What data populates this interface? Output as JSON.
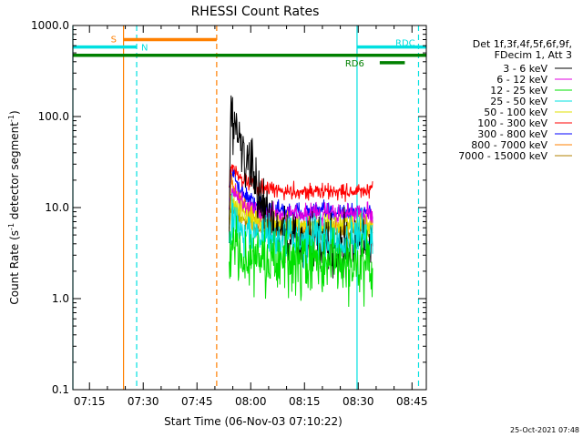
{
  "chart_data": {
    "type": "line",
    "title": "RHESSI Count Rates",
    "xlabel": "Start Time (06-Nov-03 07:10:22)",
    "ylabel_main": "Count Rate (s",
    "ylabel_sup": "-1",
    "ylabel_rest": " detector segment",
    "ylabel_end": ")",
    "yscale": "log",
    "ylim": [
      0.1,
      1000
    ],
    "xlim": [
      "07:10:22",
      "08:49:00"
    ],
    "x_ticks": [
      "07:15",
      "07:30",
      "07:45",
      "08:00",
      "08:15",
      "08:30",
      "08:45"
    ],
    "y_ticks": [
      "0.1",
      "1.0",
      "10.0",
      "100.0",
      "1000.0"
    ],
    "legend_header": [
      "Det 1f,3f,4f,5f,6f,9f,",
      "FDecim 1, Att 3"
    ],
    "series": [
      {
        "name": "3 - 6 keV",
        "color": "#000000",
        "start": "07:54",
        "end": "08:34",
        "peak": 110,
        "plateau": 4,
        "noise": 0.28
      },
      {
        "name": "6 - 12 keV",
        "color": "#e000e0",
        "start": "07:54",
        "end": "08:34",
        "peak": 15,
        "plateau": 8.5,
        "noise": 0.1
      },
      {
        "name": "12 - 25 keV",
        "color": "#00e000",
        "start": "07:54",
        "end": "08:34",
        "peak": 4,
        "plateau": 2.4,
        "noise": 0.3
      },
      {
        "name": "25 - 50 keV",
        "color": "#00e0e0",
        "start": "07:54",
        "end": "08:34",
        "peak": 8,
        "plateau": 4.5,
        "noise": 0.22
      },
      {
        "name": "50 - 100 keV",
        "color": "#e0e000",
        "start": "07:54",
        "end": "08:34",
        "peak": 12,
        "plateau": 6.5,
        "noise": 0.1
      },
      {
        "name": "100 - 300 keV",
        "color": "#ff0000",
        "start": "07:54",
        "end": "08:34",
        "peak": 30,
        "plateau": 15,
        "noise": 0.08
      },
      {
        "name": "300 - 800 keV",
        "color": "#0000ff",
        "start": "07:54",
        "end": "08:34",
        "peak": 25,
        "plateau": 9,
        "noise": 0.09
      },
      {
        "name": "800 - 7000 keV",
        "color": "#ff8000",
        "start": "07:54",
        "end": "08:34",
        "peak": 20,
        "plateau": 6,
        "noise": 0.1
      },
      {
        "name": "7000 - 15000 keV",
        "color": "#b08000",
        "start": "07:54",
        "end": "08:34",
        "peak": 10,
        "plateau": 5.5,
        "noise": 0.08
      }
    ],
    "vlines": [
      {
        "time": "07:10:22",
        "color": "#00e0e0",
        "style": "solid"
      },
      {
        "time": "07:24:30",
        "color": "#ff8000",
        "style": "solid"
      },
      {
        "time": "07:28:10",
        "color": "#00e0e0",
        "style": "dashed"
      },
      {
        "time": "07:50:30",
        "color": "#ff8000",
        "style": "dashed"
      },
      {
        "time": "08:29:40",
        "color": "#00e0e0",
        "style": "solid"
      },
      {
        "time": "08:46:50",
        "color": "#00e0e0",
        "style": "dashed"
      }
    ],
    "bars": [
      {
        "label": "S",
        "color": "#ff8000",
        "x_start": "07:24:30",
        "x_end": "07:50:30",
        "level": 700
      },
      {
        "label": "N",
        "color": "#00e0e0",
        "x_start": "07:10:22",
        "x_end": "07:28:10",
        "level": 580
      },
      {
        "label": "",
        "color": "#008000",
        "x_start": "07:10:22",
        "x_end": "08:49:00",
        "level": 470
      },
      {
        "label": "RDC",
        "color": "#00e0e0",
        "x_start": "08:29:40",
        "x_end": "08:49:00",
        "level": 580
      },
      {
        "label": "RD6",
        "color": "#008000",
        "x_start": "08:36:00",
        "x_end": "08:43:00",
        "level": 390
      }
    ]
  },
  "footer": {
    "timestamp": "25-Oct-2021 07:48"
  }
}
